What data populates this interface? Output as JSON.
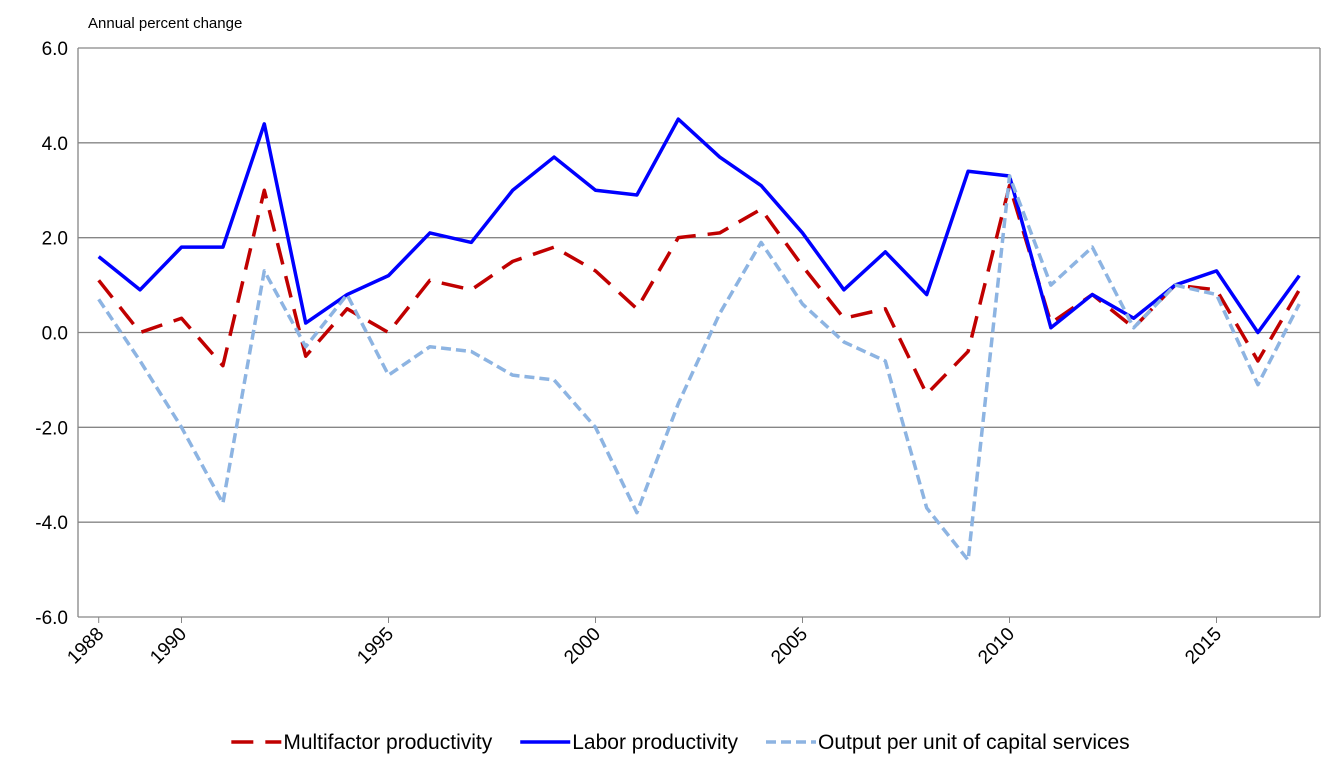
{
  "chart_data": {
    "type": "line",
    "y_axis_label": "Annual percent change",
    "x": [
      1988,
      1989,
      1990,
      1991,
      1992,
      1993,
      1994,
      1995,
      1996,
      1997,
      1998,
      1999,
      2000,
      2001,
      2002,
      2003,
      2004,
      2005,
      2006,
      2007,
      2008,
      2009,
      2010,
      2011,
      2012,
      2013,
      2014,
      2015,
      2016,
      2017
    ],
    "xlim": [
      1987.5,
      2017.5
    ],
    "xticks": [
      1988,
      1990,
      1995,
      2000,
      2005,
      2010,
      2015
    ],
    "ylim": [
      -6,
      6
    ],
    "yticks": [
      {
        "value": -6,
        "label": "-6.0"
      },
      {
        "value": -4,
        "label": "-4.0"
      },
      {
        "value": -2,
        "label": "-2.0"
      },
      {
        "value": 0,
        "label": "0.0"
      },
      {
        "value": 2,
        "label": "2.0"
      },
      {
        "value": 4,
        "label": "4.0"
      },
      {
        "value": 6,
        "label": "6.0"
      }
    ],
    "grid": true,
    "legend": "bottom",
    "series": [
      {
        "name": "Multifactor productivity",
        "color": "#c00000",
        "style": "long-dash",
        "values": [
          1.1,
          0.0,
          0.3,
          -0.7,
          3.0,
          -0.5,
          0.5,
          0.0,
          1.1,
          0.9,
          1.5,
          1.8,
          1.3,
          0.5,
          2.0,
          2.1,
          2.6,
          1.4,
          0.3,
          0.5,
          -1.3,
          -0.4,
          3.1,
          0.2,
          0.8,
          0.1,
          1.0,
          0.9,
          -0.6,
          0.9
        ]
      },
      {
        "name": "Labor productivity",
        "color": "#0000ff",
        "style": "solid",
        "values": [
          1.6,
          0.9,
          1.8,
          1.8,
          4.4,
          0.2,
          0.8,
          1.2,
          2.1,
          1.9,
          3.0,
          3.7,
          3.0,
          2.9,
          4.5,
          3.7,
          3.1,
          2.1,
          0.9,
          1.7,
          0.8,
          3.4,
          3.3,
          0.1,
          0.8,
          0.3,
          1.0,
          1.3,
          0.0,
          1.2
        ]
      },
      {
        "name": "Output per unit of capital services",
        "color": "#8db4e2",
        "style": "short-dash",
        "values": [
          0.7,
          -0.6,
          -2.0,
          -3.6,
          1.3,
          -0.3,
          0.8,
          -0.9,
          -0.3,
          -0.4,
          -0.9,
          -1.0,
          -2.0,
          -3.8,
          -1.5,
          0.4,
          1.9,
          0.6,
          -0.2,
          -0.6,
          -3.7,
          -4.8,
          3.3,
          1.0,
          1.8,
          0.1,
          1.0,
          0.8,
          -1.1,
          0.6
        ]
      }
    ]
  }
}
